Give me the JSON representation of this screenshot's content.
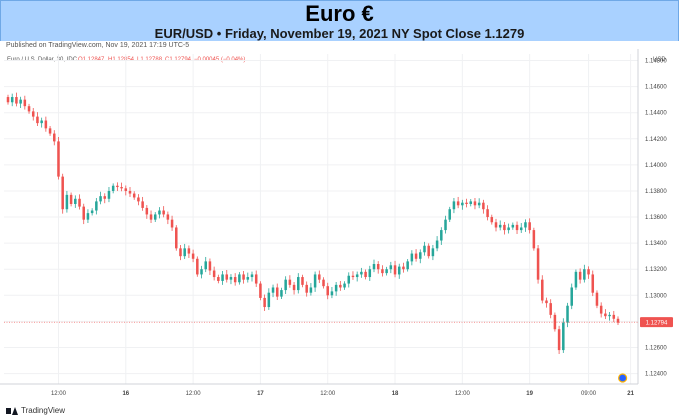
{
  "header": {
    "title": "Euro €",
    "subtitle": "EUR/USD • Friday, November 19, 2021 NY Spot Close 1.1279"
  },
  "published": "Published on TradingView.com, Nov 19, 2021 17:19 UTC-5",
  "footer": {
    "brand": "TradingView",
    "logo_icon": "tradingview-logo-icon"
  },
  "colors": {
    "up": "#26a69a",
    "down": "#ef5350",
    "last_price": "#ef5350",
    "dot": "#2962ff"
  },
  "chart_data": {
    "type": "candlestick",
    "symbol_label": "Euro / U.S. Dollar, 30, IDC",
    "ohlc_readout": {
      "o": "O1.12847",
      "h": "H1.12854",
      "l": "L1.12788",
      "c": "C1.12794",
      "chg": "−0.00045 (−0.04%)"
    },
    "currency": "USD",
    "y_ticks": [
      "1.14800",
      "1.14600",
      "1.14400",
      "1.14200",
      "1.14000",
      "1.13800",
      "1.13600",
      "1.13400",
      "1.13200",
      "1.13000",
      "1.12800",
      "1.12600",
      "1.12400"
    ],
    "ylim": [
      1.1232,
      1.1485
    ],
    "x_ticks": [
      {
        "label": "12:00",
        "i": 12
      },
      {
        "label": "16",
        "i": 28
      },
      {
        "label": "12:00",
        "i": 44
      },
      {
        "label": "17",
        "i": 60
      },
      {
        "label": "12:00",
        "i": 76
      },
      {
        "label": "18",
        "i": 92
      },
      {
        "label": "12:00",
        "i": 108
      },
      {
        "label": "19",
        "i": 124
      },
      {
        "label": "09:00",
        "i": 138
      },
      {
        "label": "21",
        "i": 148
      }
    ],
    "last_price_label": "1.12794",
    "last_price": 1.12794,
    "close_values": [
      1.1448,
      1.1452,
      1.1447,
      1.145,
      1.1445,
      1.1441,
      1.1437,
      1.1432,
      1.1434,
      1.1428,
      1.1424,
      1.1418,
      1.1391,
      1.1366,
      1.1377,
      1.137,
      1.1374,
      1.1368,
      1.1358,
      1.1363,
      1.1365,
      1.1372,
      1.1376,
      1.1374,
      1.138,
      1.1384,
      1.1383,
      1.1382,
      1.138,
      1.1378,
      1.1375,
      1.1372,
      1.1367,
      1.1362,
      1.1358,
      1.1362,
      1.1365,
      1.1362,
      1.1358,
      1.1352,
      1.1336,
      1.133,
      1.1336,
      1.1332,
      1.1328,
      1.1316,
      1.132,
      1.1326,
      1.1319,
      1.1314,
      1.1311,
      1.1316,
      1.1312,
      1.1314,
      1.131,
      1.1316,
      1.1312,
      1.1314,
      1.1316,
      1.1309,
      1.1298,
      1.1291,
      1.1302,
      1.1306,
      1.1299,
      1.1304,
      1.1312,
      1.1308,
      1.1304,
      1.1314,
      1.1308,
      1.1302,
      1.1306,
      1.1316,
      1.1312,
      1.1307,
      1.13,
      1.1303,
      1.1308,
      1.1306,
      1.1309,
      1.1315,
      1.1314,
      1.1316,
      1.1318,
      1.1314,
      1.132,
      1.1324,
      1.132,
      1.1317,
      1.132,
      1.1323,
      1.1316,
      1.1322,
      1.132,
      1.1326,
      1.1332,
      1.1328,
      1.1333,
      1.1338,
      1.133,
      1.1336,
      1.1342,
      1.135,
      1.1358,
      1.1366,
      1.1372,
      1.1369,
      1.1371,
      1.137,
      1.1372,
      1.1369,
      1.1371,
      1.1366,
      1.136,
      1.1356,
      1.1352,
      1.1354,
      1.135,
      1.1352,
      1.1354,
      1.135,
      1.1352,
      1.1356,
      1.135,
      1.1336,
      1.1312,
      1.1296,
      1.1294,
      1.1285,
      1.1274,
      1.1258,
      1.1279,
      1.1292,
      1.1306,
      1.1318,
      1.1312,
      1.132,
      1.1316,
      1.1302,
      1.1292,
      1.1286,
      1.1284,
      1.1285,
      1.1282,
      1.1279
    ]
  }
}
